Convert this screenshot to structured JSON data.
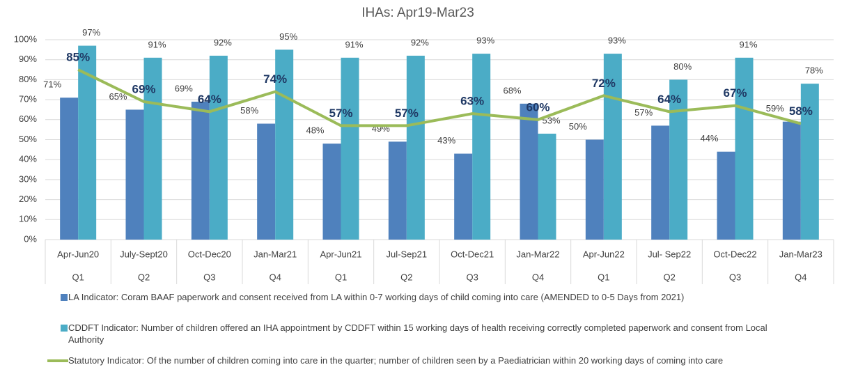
{
  "chart_data": {
    "type": "bar-line",
    "title": "IHAs: Apr19-Mar23",
    "categories": [
      "Apr-Jun20",
      "July-Sept20",
      "Oct-Dec20",
      "Jan-Mar21",
      "Apr-Jun21",
      "Jul-Sep21",
      "Oct-Dec21",
      "Jan-Mar22",
      "Apr-Jun22",
      "Jul- Sep22",
      "Oct-Dec22",
      "Jan-Mar23"
    ],
    "quarters": [
      "Q1",
      "Q2",
      "Q3",
      "Q4",
      "Q1",
      "Q2",
      "Q3",
      "Q4",
      "Q1",
      "Q2",
      "Q3",
      "Q4"
    ],
    "series": [
      {
        "name": "LA Indicator:  Coram BAAF paperwork and consent received from LA within 0-7 working days of child coming into care (AMENDED to 0-5 Days from 2021)",
        "color": "#4f81bd",
        "mark": "bar",
        "values": [
          71,
          65,
          69,
          58,
          48,
          49,
          43,
          68,
          50,
          57,
          44,
          59
        ],
        "value_labels": [
          "71%",
          "65%",
          "69%",
          "58%",
          "48%",
          "49%",
          "43%",
          "68%",
          "50%",
          "57%",
          "44%",
          "59%"
        ]
      },
      {
        "name": "CDDFT Indicator: Number of children offered an IHA appointment by CDDFT within 15 working days of health receiving correctly completed paperwork and consent from Local Authority",
        "color": "#4bacc6",
        "mark": "bar",
        "values": [
          97,
          91,
          92,
          95,
          91,
          92,
          93,
          53,
          93,
          80,
          91,
          78
        ],
        "value_labels": [
          "97%",
          "91%",
          "92%",
          "95%",
          "91%",
          "92%",
          "93%",
          "53%",
          "93%",
          "80%",
          "91%",
          "78%"
        ]
      },
      {
        "name": "Statutory Indicator:  Of the number of children coming into care in the quarter; number of children seen by a Paediatrician within 20 working days of coming into care",
        "color": "#9bbb59",
        "mark": "line",
        "values": [
          85,
          69,
          64,
          74,
          57,
          57,
          63,
          60,
          72,
          64,
          67,
          58
        ],
        "value_labels": [
          "85%",
          "69%",
          "64%",
          "74%",
          "57%",
          "57%",
          "63%",
          "60%",
          "72%",
          "64%",
          "67%",
          "58%"
        ]
      }
    ],
    "ylim": [
      0,
      100
    ],
    "yticks": [
      {
        "value": 0,
        "label": "0%"
      },
      {
        "value": 10,
        "label": "10%"
      },
      {
        "value": 20,
        "label": "20%"
      },
      {
        "value": 30,
        "label": "30%"
      },
      {
        "value": 40,
        "label": "40%"
      },
      {
        "value": 50,
        "label": "50%"
      },
      {
        "value": 60,
        "label": "60%"
      },
      {
        "value": 70,
        "label": "70%"
      },
      {
        "value": 80,
        "label": "80%"
      },
      {
        "value": 90,
        "label": "90%"
      },
      {
        "value": 100,
        "label": "100%"
      }
    ],
    "grid": true,
    "legend": "bottom"
  }
}
